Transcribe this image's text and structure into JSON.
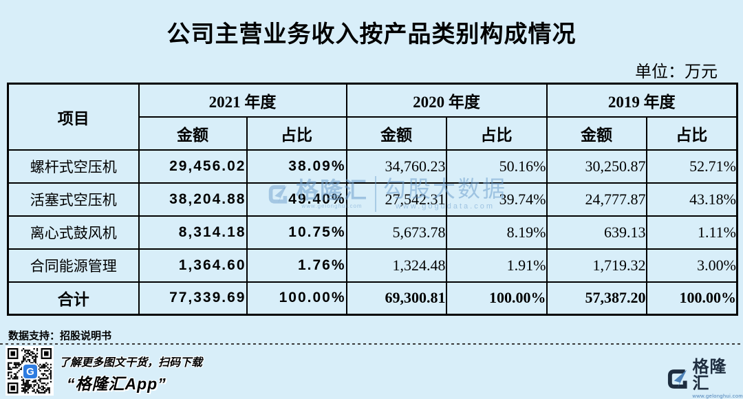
{
  "chart_data": {
    "type": "table",
    "title": "公司主营业务收入按产品类别构成情况",
    "unit_label": "单位：万元",
    "item_header": "项目",
    "year_groups": [
      {
        "label": "2021 年度",
        "amount_header": "金额",
        "ratio_header": "占比"
      },
      {
        "label": "2020 年度",
        "amount_header": "金额",
        "ratio_header": "占比"
      },
      {
        "label": "2019 年度",
        "amount_header": "金额",
        "ratio_header": "占比"
      }
    ],
    "rows": [
      [
        "螺杆式空压机",
        "29,456.02",
        "38.09%",
        "34,760.23",
        "50.16%",
        "30,250.87",
        "52.71%"
      ],
      [
        "活塞式空压机",
        "38,204.88",
        "49.40%",
        "27,542.31",
        "39.74%",
        "24,777.87",
        "43.18%"
      ],
      [
        "离心式鼓风机",
        "8,314.18",
        "10.75%",
        "5,673.78",
        "8.19%",
        "639.13",
        "1.11%"
      ],
      [
        "合同能源管理",
        "1,364.60",
        "1.76%",
        "1,324.48",
        "1.91%",
        "1,719.32",
        "3.00%"
      ]
    ],
    "total": [
      "合计",
      "77,339.69",
      "100.00%",
      "69,300.81",
      "100.00%",
      "57,387.20",
      "100.00%"
    ]
  },
  "watermark": {
    "brand_name": "格隆汇",
    "brand_url": "www.gelonghui.com",
    "data_brand": "勾股大数据",
    "data_url": "www.gogudata.com"
  },
  "footer": {
    "source_label": "数据支持：招股说明书",
    "qr_caption": "了解更多图文干货，扫码下载",
    "app_name": "“格隆汇App”",
    "brand_name": "格隆汇",
    "brand_url": "www.gelonghui.com",
    "qr_logo_letter": "G"
  },
  "colors": {
    "background": "#d8eef9",
    "table_border": "#000000",
    "watermark_blue": "#6fa0cd",
    "brand_navy": "#1e2d3f",
    "brand_steel_blue": "#4d82b8",
    "qr_logo_blue": "#2e7ce0"
  }
}
